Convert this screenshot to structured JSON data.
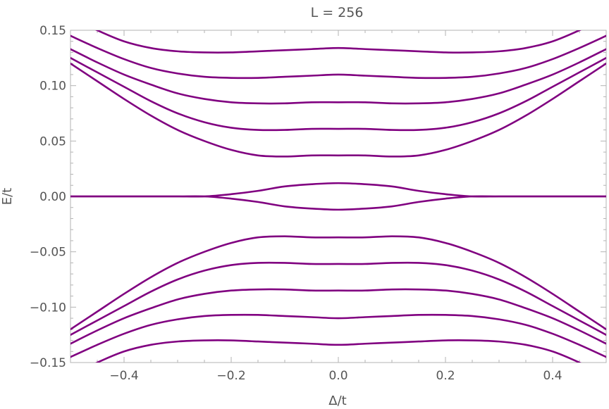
{
  "chart_data": {
    "type": "line",
    "title": "L = 256",
    "xlabel": "Δ/t",
    "ylabel": "E/t",
    "xlim": [
      -0.5,
      0.5
    ],
    "ylim": [
      -0.15,
      0.15
    ],
    "x_ticks": [
      -0.4,
      -0.2,
      0.0,
      0.2,
      0.4
    ],
    "x_tick_labels": [
      "−0.4",
      "−0.2",
      "0.0",
      "0.2",
      "0.4"
    ],
    "y_ticks": [
      -0.15,
      -0.1,
      -0.05,
      0.0,
      0.05,
      0.1,
      0.15
    ],
    "y_tick_labels": [
      "−0.15",
      "−0.10",
      "−0.05",
      "0.00",
      "0.05",
      "0.10",
      "0.15"
    ],
    "grid": false,
    "line_color": "#800080",
    "x": [
      -0.5,
      -0.45,
      -0.4,
      -0.35,
      -0.3,
      -0.25,
      -0.2,
      -0.15,
      -0.1,
      -0.05,
      0.0,
      0.05,
      0.1,
      0.15,
      0.2,
      0.25,
      0.3,
      0.35,
      0.4,
      0.45,
      0.5
    ],
    "series": [
      {
        "values": [
          0.12,
          0.104,
          0.088,
          0.073,
          0.06,
          0.05,
          0.042,
          0.037,
          0.036,
          0.037,
          0.037,
          0.037,
          0.036,
          0.037,
          0.042,
          0.05,
          0.06,
          0.073,
          0.088,
          0.104,
          0.12
        ]
      },
      {
        "values": [
          0.125,
          0.112,
          0.099,
          0.086,
          0.075,
          0.067,
          0.062,
          0.06,
          0.06,
          0.061,
          0.061,
          0.061,
          0.06,
          0.06,
          0.062,
          0.067,
          0.075,
          0.086,
          0.099,
          0.112,
          0.125
        ]
      },
      {
        "values": [
          0.133,
          0.121,
          0.11,
          0.101,
          0.093,
          0.088,
          0.085,
          0.084,
          0.084,
          0.085,
          0.085,
          0.085,
          0.084,
          0.084,
          0.085,
          0.088,
          0.093,
          0.101,
          0.11,
          0.121,
          0.133
        ]
      },
      {
        "values": [
          0.145,
          0.134,
          0.124,
          0.116,
          0.111,
          0.108,
          0.107,
          0.107,
          0.108,
          0.109,
          0.11,
          0.109,
          0.108,
          0.107,
          0.107,
          0.108,
          0.111,
          0.116,
          0.124,
          0.134,
          0.145
        ]
      },
      {
        "values": [
          0.162,
          0.15,
          0.14,
          0.134,
          0.131,
          0.13,
          0.13,
          0.131,
          0.132,
          0.133,
          0.134,
          0.133,
          0.132,
          0.131,
          0.13,
          0.13,
          0.131,
          0.134,
          0.14,
          0.15,
          0.162
        ]
      },
      {
        "values": [
          0.0,
          0.0,
          0.0,
          0.0,
          0.0,
          0.0,
          0.002,
          0.005,
          0.009,
          0.011,
          0.012,
          0.011,
          0.009,
          0.005,
          0.002,
          0.0,
          0.0,
          0.0,
          0.0,
          0.0,
          0.0
        ]
      },
      {
        "values": [
          0.0,
          0.0,
          0.0,
          0.0,
          0.0,
          0.0,
          -0.002,
          -0.005,
          -0.009,
          -0.011,
          -0.012,
          -0.011,
          -0.009,
          -0.005,
          -0.002,
          0.0,
          0.0,
          0.0,
          0.0,
          0.0,
          0.0
        ]
      },
      {
        "values": [
          -0.12,
          -0.104,
          -0.088,
          -0.073,
          -0.06,
          -0.05,
          -0.042,
          -0.037,
          -0.036,
          -0.037,
          -0.037,
          -0.037,
          -0.036,
          -0.037,
          -0.042,
          -0.05,
          -0.06,
          -0.073,
          -0.088,
          -0.104,
          -0.12
        ]
      },
      {
        "values": [
          -0.125,
          -0.112,
          -0.099,
          -0.086,
          -0.075,
          -0.067,
          -0.062,
          -0.06,
          -0.06,
          -0.061,
          -0.061,
          -0.061,
          -0.06,
          -0.06,
          -0.062,
          -0.067,
          -0.075,
          -0.086,
          -0.099,
          -0.112,
          -0.125
        ]
      },
      {
        "values": [
          -0.133,
          -0.121,
          -0.11,
          -0.101,
          -0.093,
          -0.088,
          -0.085,
          -0.084,
          -0.084,
          -0.085,
          -0.085,
          -0.085,
          -0.084,
          -0.084,
          -0.085,
          -0.088,
          -0.093,
          -0.101,
          -0.11,
          -0.121,
          -0.133
        ]
      },
      {
        "values": [
          -0.145,
          -0.134,
          -0.124,
          -0.116,
          -0.111,
          -0.108,
          -0.107,
          -0.107,
          -0.108,
          -0.109,
          -0.11,
          -0.109,
          -0.108,
          -0.107,
          -0.107,
          -0.108,
          -0.111,
          -0.116,
          -0.124,
          -0.134,
          -0.145
        ]
      },
      {
        "values": [
          -0.162,
          -0.15,
          -0.14,
          -0.134,
          -0.131,
          -0.13,
          -0.13,
          -0.131,
          -0.132,
          -0.133,
          -0.134,
          -0.133,
          -0.132,
          -0.131,
          -0.13,
          -0.13,
          -0.131,
          -0.134,
          -0.14,
          -0.15,
          -0.162
        ]
      }
    ]
  }
}
